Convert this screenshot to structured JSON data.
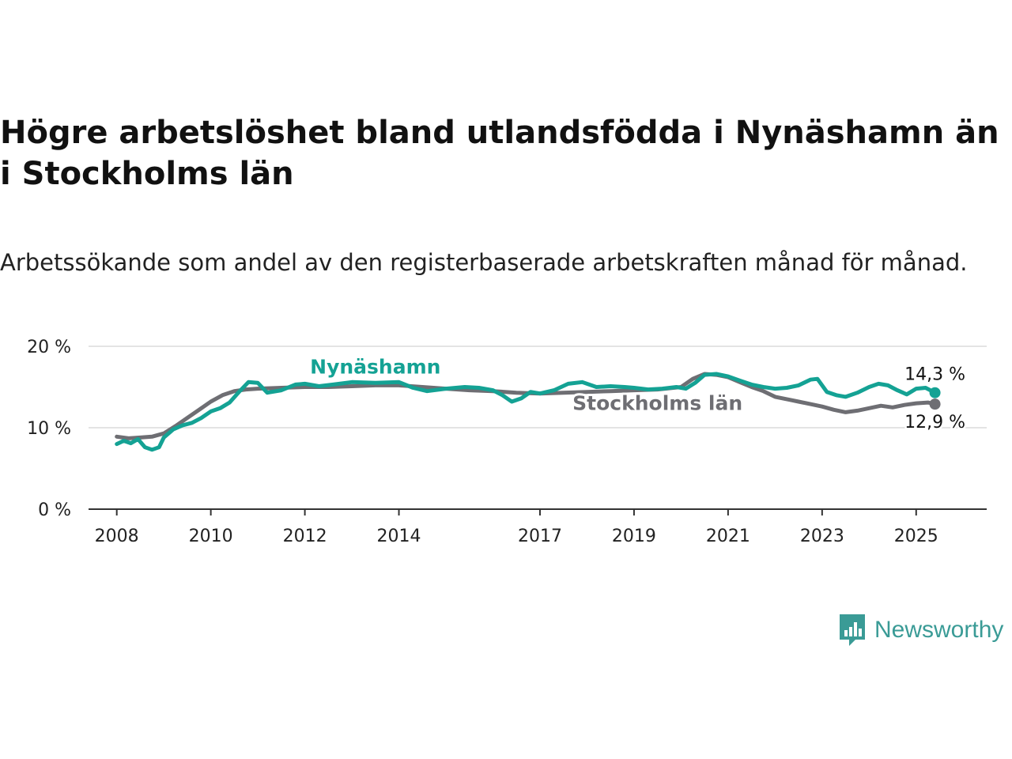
{
  "header": {
    "title": "Högre arbetslöshet bland utlandsfödda i Nynäshamn än i Stockholms län",
    "subtitle": "Arbetssökande som andel av den registerbaserade arbetskraften månad för månad."
  },
  "brand": {
    "name": "Newsworthy",
    "icon": "newsworthy-logo-icon",
    "color": "#3a9b96"
  },
  "chart_data": {
    "type": "line",
    "title": "Högre arbetslöshet bland utlandsfödda i Nynäshamn än i Stockholms län",
    "subtitle": "Arbetssökande som andel av den registerbaserade arbetskraften månad för månad.",
    "ylim": [
      0,
      20
    ],
    "xlim": [
      2007.4,
      2026.5
    ],
    "y_ticks": [
      {
        "value": 0,
        "label": "0 %"
      },
      {
        "value": 10,
        "label": "10 %"
      },
      {
        "value": 20,
        "label": "20 %"
      }
    ],
    "x_ticks": [
      {
        "value": 2008,
        "label": "2008"
      },
      {
        "value": 2010,
        "label": "2010"
      },
      {
        "value": 2012,
        "label": "2012"
      },
      {
        "value": 2014,
        "label": "2014"
      },
      {
        "value": 2017,
        "label": "2017"
      },
      {
        "value": 2019,
        "label": "2019"
      },
      {
        "value": 2021,
        "label": "2021"
      },
      {
        "value": 2023,
        "label": "2023"
      },
      {
        "value": 2025,
        "label": "2025"
      }
    ],
    "grid": "horizontal",
    "series": [
      {
        "name": "Stockholms län",
        "color": "#6e6e73",
        "end_label": "12,9 %",
        "points": [
          [
            2008.0,
            8.9
          ],
          [
            2008.25,
            8.7
          ],
          [
            2008.5,
            8.8
          ],
          [
            2008.75,
            8.9
          ],
          [
            2009.0,
            9.3
          ],
          [
            2009.25,
            10.2
          ],
          [
            2009.5,
            11.2
          ],
          [
            2009.75,
            12.2
          ],
          [
            2010.0,
            13.2
          ],
          [
            2010.25,
            14.0
          ],
          [
            2010.5,
            14.5
          ],
          [
            2010.75,
            14.7
          ],
          [
            2011.0,
            14.8
          ],
          [
            2011.5,
            14.9
          ],
          [
            2012.0,
            15.0
          ],
          [
            2012.5,
            15.0
          ],
          [
            2013.0,
            15.1
          ],
          [
            2013.5,
            15.2
          ],
          [
            2014.0,
            15.2
          ],
          [
            2014.5,
            15.0
          ],
          [
            2015.0,
            14.8
          ],
          [
            2015.5,
            14.6
          ],
          [
            2016.0,
            14.5
          ],
          [
            2016.5,
            14.3
          ],
          [
            2017.0,
            14.2
          ],
          [
            2017.5,
            14.3
          ],
          [
            2018.0,
            14.4
          ],
          [
            2018.5,
            14.5
          ],
          [
            2019.0,
            14.6
          ],
          [
            2019.5,
            14.7
          ],
          [
            2020.0,
            15.0
          ],
          [
            2020.25,
            16.0
          ],
          [
            2020.5,
            16.6
          ],
          [
            2020.75,
            16.5
          ],
          [
            2021.0,
            16.2
          ],
          [
            2021.25,
            15.6
          ],
          [
            2021.5,
            15.0
          ],
          [
            2021.75,
            14.5
          ],
          [
            2022.0,
            13.8
          ],
          [
            2022.25,
            13.5
          ],
          [
            2022.5,
            13.2
          ],
          [
            2022.75,
            12.9
          ],
          [
            2023.0,
            12.6
          ],
          [
            2023.25,
            12.2
          ],
          [
            2023.5,
            11.9
          ],
          [
            2023.75,
            12.1
          ],
          [
            2024.0,
            12.4
          ],
          [
            2024.25,
            12.7
          ],
          [
            2024.5,
            12.5
          ],
          [
            2024.75,
            12.8
          ],
          [
            2025.0,
            13.0
          ],
          [
            2025.25,
            13.1
          ],
          [
            2025.4,
            12.9
          ]
        ]
      },
      {
        "name": "Nynäshamn",
        "color": "#14a294",
        "end_label": "14,3 %",
        "points": [
          [
            2008.0,
            8.0
          ],
          [
            2008.15,
            8.4
          ],
          [
            2008.3,
            8.1
          ],
          [
            2008.45,
            8.6
          ],
          [
            2008.6,
            7.6
          ],
          [
            2008.75,
            7.3
          ],
          [
            2008.9,
            7.6
          ],
          [
            2009.0,
            8.8
          ],
          [
            2009.2,
            9.8
          ],
          [
            2009.4,
            10.3
          ],
          [
            2009.6,
            10.6
          ],
          [
            2009.8,
            11.2
          ],
          [
            2010.0,
            12.0
          ],
          [
            2010.2,
            12.4
          ],
          [
            2010.4,
            13.1
          ],
          [
            2010.6,
            14.4
          ],
          [
            2010.8,
            15.6
          ],
          [
            2011.0,
            15.5
          ],
          [
            2011.2,
            14.3
          ],
          [
            2011.5,
            14.6
          ],
          [
            2011.8,
            15.3
          ],
          [
            2012.0,
            15.4
          ],
          [
            2012.3,
            15.1
          ],
          [
            2012.6,
            15.3
          ],
          [
            2013.0,
            15.6
          ],
          [
            2013.5,
            15.5
          ],
          [
            2014.0,
            15.6
          ],
          [
            2014.3,
            14.9
          ],
          [
            2014.6,
            14.5
          ],
          [
            2015.0,
            14.8
          ],
          [
            2015.4,
            15.0
          ],
          [
            2015.7,
            14.9
          ],
          [
            2016.0,
            14.6
          ],
          [
            2016.2,
            14.0
          ],
          [
            2016.4,
            13.2
          ],
          [
            2016.6,
            13.6
          ],
          [
            2016.8,
            14.4
          ],
          [
            2017.0,
            14.2
          ],
          [
            2017.3,
            14.6
          ],
          [
            2017.6,
            15.4
          ],
          [
            2017.9,
            15.6
          ],
          [
            2018.2,
            15.0
          ],
          [
            2018.5,
            15.1
          ],
          [
            2018.8,
            15.0
          ],
          [
            2019.0,
            14.9
          ],
          [
            2019.3,
            14.7
          ],
          [
            2019.6,
            14.8
          ],
          [
            2019.9,
            15.0
          ],
          [
            2020.1,
            14.8
          ],
          [
            2020.3,
            15.5
          ],
          [
            2020.5,
            16.5
          ],
          [
            2020.75,
            16.6
          ],
          [
            2021.0,
            16.3
          ],
          [
            2021.25,
            15.8
          ],
          [
            2021.5,
            15.3
          ],
          [
            2021.75,
            15.0
          ],
          [
            2022.0,
            14.8
          ],
          [
            2022.25,
            14.9
          ],
          [
            2022.5,
            15.2
          ],
          [
            2022.75,
            15.9
          ],
          [
            2022.9,
            16.0
          ],
          [
            2023.1,
            14.4
          ],
          [
            2023.3,
            14.0
          ],
          [
            2023.5,
            13.8
          ],
          [
            2023.75,
            14.3
          ],
          [
            2024.0,
            15.0
          ],
          [
            2024.2,
            15.4
          ],
          [
            2024.4,
            15.2
          ],
          [
            2024.6,
            14.6
          ],
          [
            2024.8,
            14.1
          ],
          [
            2025.0,
            14.8
          ],
          [
            2025.2,
            14.9
          ],
          [
            2025.4,
            14.3
          ]
        ]
      }
    ],
    "annotations": [
      {
        "text": "Nynäshamn",
        "series": "Nynäshamn",
        "x": 2013.5,
        "y": 15.5
      },
      {
        "text": "Stockholms län",
        "series": "Stockholms län",
        "x": 2019.5,
        "y": 14.7
      }
    ]
  }
}
